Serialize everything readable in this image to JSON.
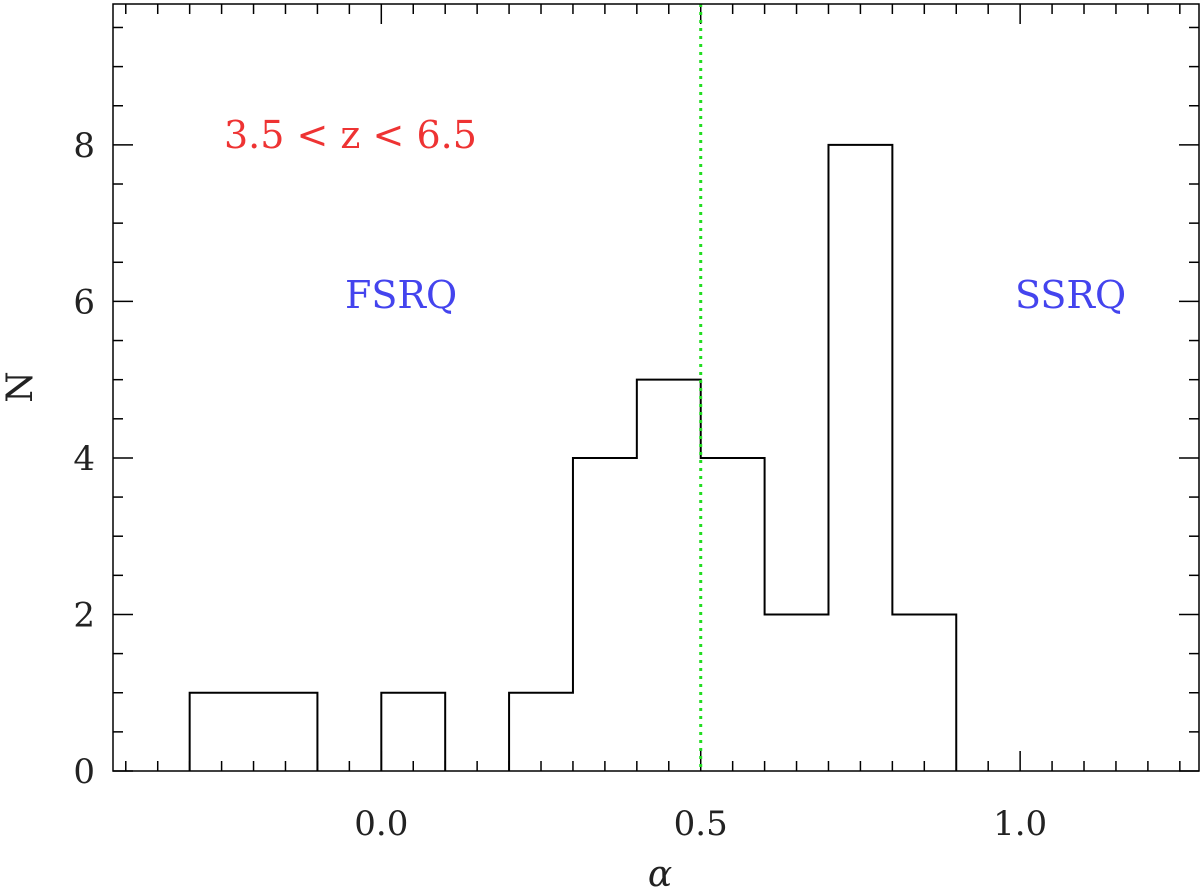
{
  "chart_data": {
    "type": "bar",
    "style": "step-histogram",
    "xlabel": "α",
    "ylabel": "N",
    "xlim": [
      -0.42,
      1.28
    ],
    "ylim": [
      0,
      9.8
    ],
    "x_ticks": [
      {
        "value": 0.0,
        "label": "0.0"
      },
      {
        "value": 0.5,
        "label": "0.5"
      },
      {
        "value": 1.0,
        "label": "1.0"
      }
    ],
    "y_ticks": [
      {
        "value": 0,
        "label": "0"
      },
      {
        "value": 2,
        "label": "2"
      },
      {
        "value": 4,
        "label": "4"
      },
      {
        "value": 6,
        "label": "6"
      },
      {
        "value": 8,
        "label": "8"
      }
    ],
    "bins": [
      {
        "x0": -0.3,
        "x1": -0.2,
        "count": 1
      },
      {
        "x0": -0.2,
        "x1": -0.1,
        "count": 1
      },
      {
        "x0": -0.1,
        "x1": 0.0,
        "count": 0
      },
      {
        "x0": 0.0,
        "x1": 0.1,
        "count": 1
      },
      {
        "x0": 0.1,
        "x1": 0.2,
        "count": 0
      },
      {
        "x0": 0.2,
        "x1": 0.3,
        "count": 1
      },
      {
        "x0": 0.3,
        "x1": 0.4,
        "count": 4
      },
      {
        "x0": 0.4,
        "x1": 0.5,
        "count": 5
      },
      {
        "x0": 0.5,
        "x1": 0.6,
        "count": 4
      },
      {
        "x0": 0.6,
        "x1": 0.7,
        "count": 2
      },
      {
        "x0": 0.7,
        "x1": 0.8,
        "count": 8
      },
      {
        "x0": 0.8,
        "x1": 0.9,
        "count": 2
      }
    ],
    "reference_line": {
      "x": 0.5,
      "color": "#22dd22",
      "style": "dotted"
    },
    "annotations": [
      {
        "id": "z-range",
        "text": "3.5 < z < 6.5",
        "color": "#ee3333"
      },
      {
        "id": "fsrq",
        "text": "FSRQ",
        "color": "#4444ee"
      },
      {
        "id": "ssrq",
        "text": "SSRQ",
        "color": "#4444ee"
      }
    ],
    "grid": false,
    "colors": {
      "histogram": "#000000",
      "axes": "#000000"
    }
  }
}
